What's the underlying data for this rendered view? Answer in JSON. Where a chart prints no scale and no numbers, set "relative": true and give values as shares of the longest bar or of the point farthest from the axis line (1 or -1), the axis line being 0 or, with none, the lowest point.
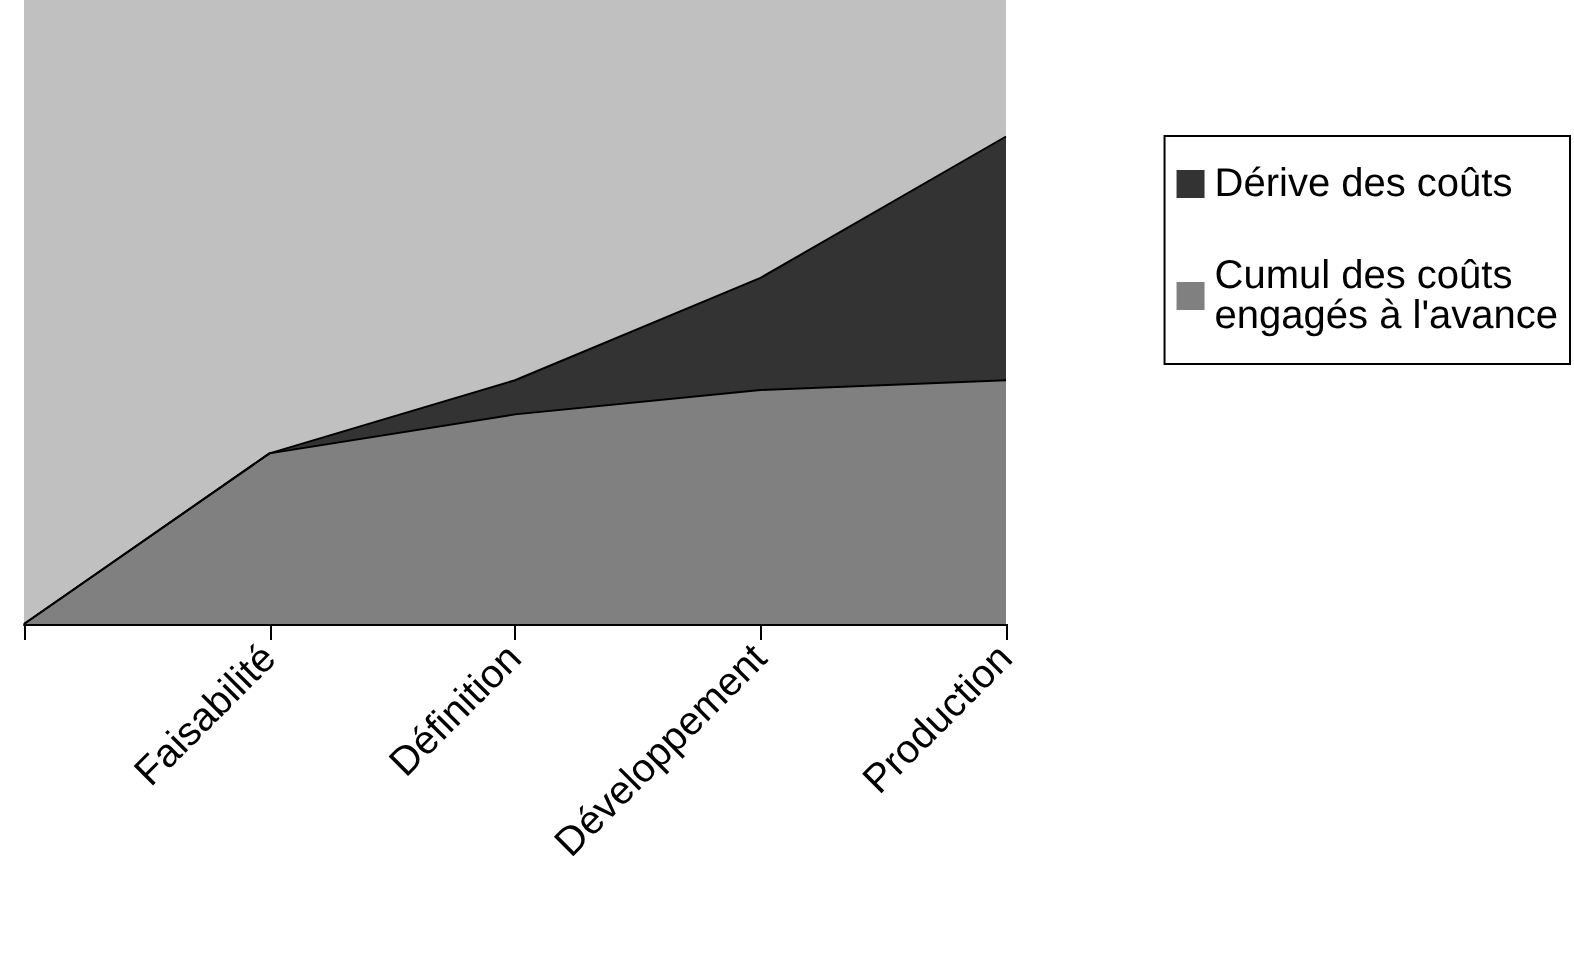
{
  "chart_data": {
    "type": "area",
    "relative": true,
    "stacked": true,
    "categories": [
      null,
      "Faisabilité",
      "Définition",
      "Développement",
      "Production"
    ],
    "series": [
      {
        "name": "Cumul des coûts engagés à l'avance",
        "color": "#808080",
        "values": [
          0,
          0.35,
          0.43,
          0.48,
          0.5
        ]
      },
      {
        "name": "Dérive des coûts",
        "color": "#333333",
        "values": [
          0,
          0,
          0.07,
          0.23,
          0.5
        ]
      }
    ],
    "legend": "right",
    "grid": false,
    "marker": "none",
    "line_style": "solid"
  }
}
